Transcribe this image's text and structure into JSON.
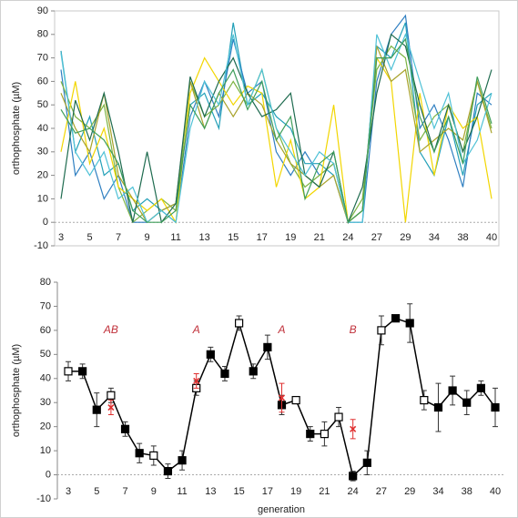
{
  "chart_data": [
    {
      "type": "line",
      "y_label": "orthophosphate (µM)",
      "categories": [
        "3",
        null,
        "5",
        null,
        "7",
        null,
        "9",
        null,
        "11",
        null,
        "13",
        null,
        "15",
        null,
        "17",
        null,
        "19",
        null,
        "21",
        null,
        "24",
        null,
        "27",
        null,
        "29",
        null,
        "34",
        null,
        "38",
        null,
        "40"
      ],
      "ylim": [
        -10,
        90
      ],
      "yticks": [
        -10,
        0,
        10,
        20,
        30,
        40,
        50,
        60,
        70,
        80,
        90
      ],
      "frame": true,
      "series": [
        {
          "color": "#23a0b8",
          "values": [
            73,
            30,
            45,
            20,
            25,
            5,
            10,
            5,
            8,
            50,
            55,
            40,
            85,
            50,
            55,
            45,
            40,
            25,
            25,
            20,
            0,
            5,
            75,
            70,
            85,
            30,
            20,
            45,
            20,
            50,
            55
          ]
        },
        {
          "color": "#2f7fc1",
          "values": [
            65,
            20,
            30,
            10,
            20,
            0,
            0,
            5,
            0,
            45,
            60,
            45,
            78,
            55,
            60,
            30,
            20,
            30,
            20,
            25,
            0,
            0,
            60,
            80,
            88,
            40,
            50,
            35,
            15,
            55,
            50
          ]
        },
        {
          "color": "#7cb342",
          "values": [
            60,
            45,
            40,
            50,
            15,
            0,
            5,
            10,
            5,
            60,
            45,
            50,
            60,
            50,
            65,
            40,
            25,
            15,
            20,
            25,
            0,
            10,
            65,
            75,
            70,
            35,
            45,
            50,
            30,
            60,
            40
          ]
        },
        {
          "color": "#f2d600",
          "values": [
            30,
            60,
            25,
            40,
            15,
            10,
            5,
            10,
            0,
            55,
            70,
            60,
            50,
            58,
            55,
            15,
            35,
            10,
            15,
            50,
            0,
            5,
            70,
            60,
            0,
            55,
            20,
            50,
            40,
            45,
            10
          ]
        },
        {
          "color": "#a8a22a",
          "values": [
            55,
            40,
            30,
            55,
            20,
            10,
            0,
            5,
            8,
            60,
            40,
            55,
            45,
            55,
            50,
            35,
            25,
            20,
            15,
            20,
            0,
            5,
            75,
            60,
            65,
            30,
            35,
            40,
            35,
            60,
            38
          ]
        },
        {
          "color": "#1e6b4f",
          "values": [
            10,
            52,
            35,
            55,
            30,
            0,
            30,
            0,
            8,
            62,
            45,
            60,
            70,
            55,
            45,
            48,
            55,
            20,
            15,
            30,
            0,
            15,
            55,
            80,
            75,
            50,
            30,
            50,
            30,
            45,
            65
          ]
        },
        {
          "color": "#4fc1d6",
          "values": [
            72,
            30,
            20,
            30,
            10,
            15,
            0,
            5,
            0,
            40,
            60,
            50,
            80,
            50,
            65,
            40,
            30,
            20,
            30,
            25,
            0,
            0,
            80,
            65,
            80,
            60,
            40,
            55,
            25,
            35,
            55
          ]
        },
        {
          "color": "#3f9e5a",
          "values": [
            48,
            38,
            40,
            35,
            25,
            5,
            0,
            0,
            5,
            50,
            40,
            55,
            65,
            48,
            60,
            35,
            45,
            10,
            25,
            30,
            0,
            5,
            70,
            70,
            78,
            45,
            30,
            45,
            25,
            62,
            42
          ]
        }
      ]
    },
    {
      "type": "line",
      "y_label": "orthophosphate (µM)",
      "x_label": "generation",
      "categories": [
        "3",
        null,
        "5",
        null,
        "7",
        null,
        "9",
        null,
        "11",
        null,
        "13",
        null,
        "15",
        null,
        "17",
        null,
        "19",
        null,
        "21",
        null,
        "24",
        null,
        "27",
        null,
        "29",
        null,
        "34",
        null,
        "38",
        null,
        "40"
      ],
      "ylim": [
        -10,
        80
      ],
      "yticks": [
        -10,
        0,
        10,
        20,
        30,
        40,
        50,
        60,
        70,
        80
      ],
      "frame": false,
      "series": [
        {
          "color": "#000000",
          "marker": "square",
          "marker_fill": [
            "open",
            "filled",
            "filled",
            "open",
            "filled",
            "filled",
            "open",
            "filled",
            "filled",
            "open",
            "filled",
            "filled",
            "open",
            "filled",
            "filled",
            "filled",
            "open",
            "filled",
            "open",
            "open",
            "filled",
            "filled",
            "open",
            "filled",
            "filled",
            "open",
            "filled",
            "filled",
            "filled",
            "filled",
            "filled"
          ],
          "values": [
            43,
            43,
            27,
            33,
            19,
            9,
            8,
            1.5,
            6,
            36,
            50,
            42,
            63,
            43,
            53,
            29,
            31,
            17,
            17,
            24,
            -0.5,
            5,
            60,
            65,
            63,
            31,
            28,
            35,
            30,
            36,
            28
          ],
          "errors": [
            4,
            3,
            7,
            3,
            3,
            4,
            4,
            3,
            4,
            3,
            3,
            3,
            3,
            3,
            5,
            4,
            1,
            3,
            5,
            4,
            2,
            5,
            6,
            1,
            8,
            4,
            10,
            6,
            5,
            3,
            8
          ]
        },
        {
          "color": "#e03030",
          "marker": "x",
          "line": false,
          "values": [
            null,
            null,
            null,
            28,
            null,
            null,
            null,
            null,
            null,
            39,
            null,
            null,
            null,
            null,
            null,
            32,
            null,
            null,
            null,
            null,
            19,
            null,
            null,
            null,
            null,
            null,
            null,
            null,
            null,
            null,
            null
          ],
          "errors": [
            null,
            null,
            null,
            3,
            null,
            null,
            null,
            null,
            null,
            3,
            null,
            null,
            null,
            null,
            null,
            6,
            null,
            null,
            null,
            null,
            4,
            null,
            null,
            null,
            null,
            null,
            null,
            null,
            null,
            null,
            null
          ]
        }
      ],
      "annotations": [
        {
          "text": "AB",
          "at": 3,
          "y": 60
        },
        {
          "text": "A",
          "at": 9,
          "y": 60
        },
        {
          "text": "A",
          "at": 15,
          "y": 60
        },
        {
          "text": "B",
          "at": 20,
          "y": 60
        }
      ]
    }
  ]
}
